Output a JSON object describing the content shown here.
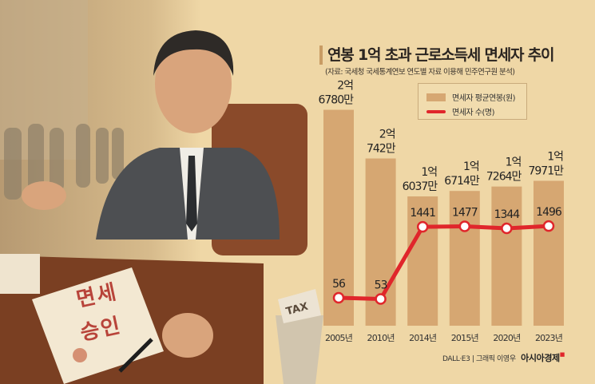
{
  "title": "연봉 1억 초과 근로소득세 면세자 추이",
  "subtitle": "(자료: 국세청 국세통계연보 연도별 자료 이용해 민주연구원 분석)",
  "illustration": {
    "document_line1": "면세",
    "document_line2": "승인",
    "trash_paper": "TAX"
  },
  "credit": {
    "text": "DALL·E3 | 그래픽 이영우",
    "brand": "아시아경제"
  },
  "colors": {
    "bar": "#d6a772",
    "line": "#e0262b",
    "background": "#efd7a6"
  },
  "chart_data": {
    "type": "bar+line",
    "categories": [
      "2005년",
      "2010년",
      "2014년",
      "2015년",
      "2020년",
      "2023년"
    ],
    "series": [
      {
        "name": "면세자 평균연봉(원)",
        "type": "bar",
        "unit": "만원",
        "values": [
          26780,
          20742,
          16037,
          16714,
          17264,
          17971
        ],
        "labels": [
          [
            "2억",
            "6780만"
          ],
          [
            "2억",
            "742만"
          ],
          [
            "1억",
            "6037만"
          ],
          [
            "1억",
            "6714만"
          ],
          [
            "1억",
            "7264만"
          ],
          [
            "1억",
            "7971만"
          ]
        ]
      },
      {
        "name": "면세자 수(명)",
        "type": "line",
        "values": [
          56,
          53,
          1441,
          1477,
          1344,
          1496
        ],
        "labels": [
          "56",
          "53",
          "1441",
          "1477",
          "1344",
          "1496"
        ]
      }
    ],
    "legend": "top-right",
    "grid": false
  }
}
